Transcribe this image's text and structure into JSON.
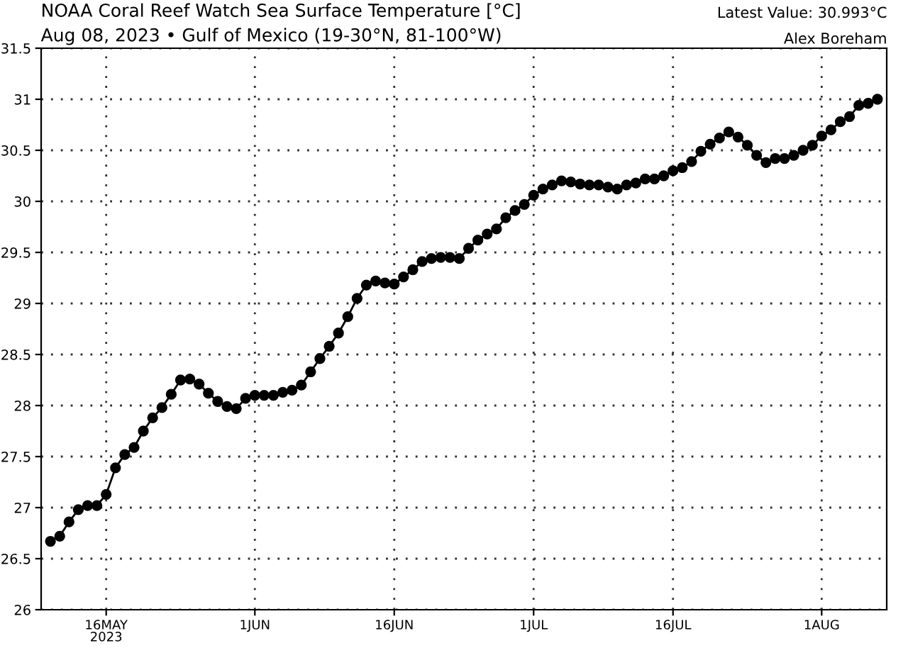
{
  "chart_data": {
    "type": "line",
    "title": "NOAA Coral Reef Watch Sea Surface Temperature [°C]",
    "subtitle": "Aug 08, 2023 • Gulf of Mexico (19-30°N, 81-100°W)",
    "annotations": [
      "Latest Value: 30.993°C",
      "Alex Boreham"
    ],
    "x": [
      "2023-05-10",
      "2023-05-11",
      "2023-05-12",
      "2023-05-13",
      "2023-05-14",
      "2023-05-15",
      "2023-05-16",
      "2023-05-17",
      "2023-05-18",
      "2023-05-19",
      "2023-05-20",
      "2023-05-21",
      "2023-05-22",
      "2023-05-23",
      "2023-05-24",
      "2023-05-25",
      "2023-05-26",
      "2023-05-27",
      "2023-05-28",
      "2023-05-29",
      "2023-05-30",
      "2023-05-31",
      "2023-06-01",
      "2023-06-02",
      "2023-06-03",
      "2023-06-04",
      "2023-06-05",
      "2023-06-06",
      "2023-06-07",
      "2023-06-08",
      "2023-06-09",
      "2023-06-10",
      "2023-06-11",
      "2023-06-12",
      "2023-06-13",
      "2023-06-14",
      "2023-06-15",
      "2023-06-16",
      "2023-06-17",
      "2023-06-18",
      "2023-06-19",
      "2023-06-20",
      "2023-06-21",
      "2023-06-22",
      "2023-06-23",
      "2023-06-24",
      "2023-06-25",
      "2023-06-26",
      "2023-06-27",
      "2023-06-28",
      "2023-06-29",
      "2023-06-30",
      "2023-07-01",
      "2023-07-02",
      "2023-07-03",
      "2023-07-04",
      "2023-07-05",
      "2023-07-06",
      "2023-07-07",
      "2023-07-08",
      "2023-07-09",
      "2023-07-10",
      "2023-07-11",
      "2023-07-12",
      "2023-07-13",
      "2023-07-14",
      "2023-07-15",
      "2023-07-16",
      "2023-07-17",
      "2023-07-18",
      "2023-07-19",
      "2023-07-20",
      "2023-07-21",
      "2023-07-22",
      "2023-07-23",
      "2023-07-24",
      "2023-07-25",
      "2023-07-26",
      "2023-07-27",
      "2023-07-28",
      "2023-07-29",
      "2023-07-30",
      "2023-07-31",
      "2023-08-01",
      "2023-08-02",
      "2023-08-03",
      "2023-08-04",
      "2023-08-05",
      "2023-08-06",
      "2023-08-07"
    ],
    "series": [
      {
        "color": "#000000",
        "values": [
          26.67,
          26.72,
          26.86,
          26.98,
          27.02,
          27.02,
          27.13,
          27.39,
          27.52,
          27.59,
          27.75,
          27.88,
          27.98,
          28.11,
          28.25,
          28.26,
          28.21,
          28.12,
          28.04,
          27.99,
          27.97,
          28.07,
          28.1,
          28.1,
          28.1,
          28.13,
          28.15,
          28.2,
          28.33,
          28.46,
          28.58,
          28.71,
          28.87,
          29.05,
          29.18,
          29.22,
          29.2,
          29.19,
          29.26,
          29.33,
          29.41,
          29.44,
          29.45,
          29.45,
          29.44,
          29.54,
          29.62,
          29.68,
          29.73,
          29.84,
          29.91,
          29.97,
          30.06,
          30.12,
          30.16,
          30.2,
          30.19,
          30.17,
          30.16,
          30.16,
          30.14,
          30.12,
          30.16,
          30.18,
          30.22,
          30.22,
          30.25,
          30.3,
          30.33,
          30.39,
          30.49,
          30.56,
          30.62,
          30.68,
          30.63,
          30.55,
          30.45,
          30.38,
          30.42,
          30.42,
          30.45,
          30.5,
          30.55,
          30.64,
          30.7,
          30.78,
          30.83,
          30.94,
          30.96,
          31.0
        ]
      }
    ],
    "xlim": [
      "2023-05-09",
      "2023-08-08"
    ],
    "xticks": [
      {
        "value": "2023-05-16",
        "label": "16MAY\n2023"
      },
      {
        "value": "2023-06-01",
        "label": "1JUN"
      },
      {
        "value": "2023-06-16",
        "label": "16JUN"
      },
      {
        "value": "2023-07-01",
        "label": "1JUL"
      },
      {
        "value": "2023-07-16",
        "label": "16JUL"
      },
      {
        "value": "2023-08-01",
        "label": "1AUG"
      }
    ],
    "ylim": [
      26,
      31.5
    ],
    "yticks": [
      26,
      26.5,
      27,
      27.5,
      28,
      28.5,
      29,
      29.5,
      30,
      30.5,
      31,
      31.5
    ],
    "grid": true,
    "marker": "circle",
    "line_style": "solid"
  }
}
